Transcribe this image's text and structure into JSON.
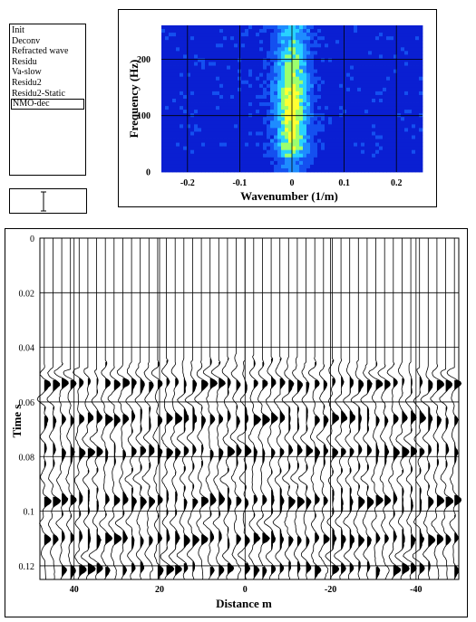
{
  "step_list": {
    "items": [
      "Init",
      "Deconv",
      "Refracted wave",
      "Residu",
      "Va-slow",
      "Residu2",
      "Residu2-Static",
      "NMO-dec"
    ],
    "selected_index": 7
  },
  "fk_chart": {
    "chart_data": {
      "type": "heatmap",
      "xlabel": "Wavenumber (1/m)",
      "ylabel": "Frequency (Hz)",
      "x_ticks": [
        "-0.2",
        "-0.1",
        "0",
        "0.1",
        "0.2"
      ],
      "y_ticks": [
        "0",
        "100",
        "200"
      ],
      "xlim": [
        -0.25,
        0.25
      ],
      "ylim": [
        0,
        260
      ],
      "grid": true,
      "colormap": [
        "#0a1fd2",
        "#1450f0",
        "#1e8cff",
        "#28d2ff",
        "#9cff6e",
        "#ffff32"
      ]
    }
  },
  "seismic_chart": {
    "chart_data": {
      "type": "line",
      "xlabel": "Distance m",
      "ylabel": "Time   s",
      "x_ticks": [
        "40",
        "20",
        "0",
        "-20",
        "-40"
      ],
      "y_ticks": [
        "0",
        "0.02",
        "0.04",
        "0.06",
        "0.08",
        "0.1",
        "0.12"
      ],
      "xlim": [
        48,
        -50
      ],
      "ylim": [
        0,
        0.125
      ],
      "grid": true,
      "trace_count": 48
    }
  }
}
